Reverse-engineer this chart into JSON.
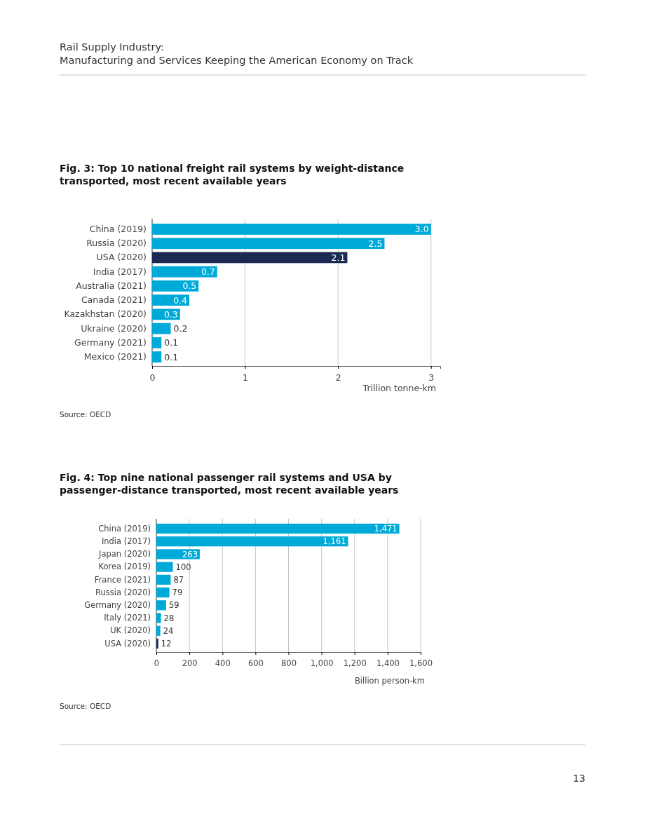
{
  "chart_data": [
    {
      "type": "bar",
      "orientation": "horizontal",
      "title": "Fig. 3: Top 10 national freight rail systems by weight-distance transported, most recent available years",
      "xlabel": "Trillion tonne-km",
      "categories": [
        "China (2019)",
        "Russia (2020)",
        "USA (2020)",
        "India (2017)",
        "Australia (2021)",
        "Canada (2021)",
        "Kazakhstan (2020)",
        "Ukraine (2020)",
        "Germany (2021)",
        "Mexico (2021)"
      ],
      "values": [
        3.0,
        2.5,
        2.1,
        0.7,
        0.5,
        0.4,
        0.3,
        0.2,
        0.1,
        0.1
      ],
      "colors": [
        "#00aad8",
        "#00aad8",
        "#1b2a52",
        "#00aad8",
        "#00aad8",
        "#00aad8",
        "#00aad8",
        "#00aad8",
        "#00aad8",
        "#00aad8"
      ],
      "xlim": [
        0,
        3.1
      ],
      "xticks": [
        0,
        1,
        2,
        3
      ],
      "grid": "x",
      "value_labels": [
        "3.0",
        "2.5",
        "2.1",
        "0.7",
        "0.5",
        "0.4",
        "0.3",
        "0.2",
        "0.1",
        "0.1"
      ],
      "annotations": [
        "Rail Supply Industry:",
        "Manufacturing and Services Keeping the American Economy on Track",
        "Source: OECD"
      ]
    },
    {
      "type": "bar",
      "orientation": "horizontal",
      "title": "Fig. 4: Top nine national passenger rail systems and USA by passenger-distance transported, most recent available years",
      "xlabel": "Billion person-km",
      "categories": [
        "China (2019)",
        "India (2017)",
        "Japan (2020)",
        "Korea (2019)",
        "France (2021)",
        "Russia (2020)",
        "Germany (2020)",
        "Italy (2021)",
        "UK (2020)",
        "USA (2020)"
      ],
      "values": [
        1471,
        1161,
        263,
        100,
        87,
        79,
        59,
        28,
        24,
        12
      ],
      "colors": [
        "#00aad8",
        "#00aad8",
        "#00aad8",
        "#00aad8",
        "#00aad8",
        "#00aad8",
        "#00aad8",
        "#00aad8",
        "#00aad8",
        "#1b2a52"
      ],
      "xlim": [
        0,
        1600
      ],
      "xticks": [
        0,
        {
          "value": 200,
          "label": "200"
        },
        {
          "value": 400,
          "label": "400"
        },
        {
          "value": 600,
          "label": "600"
        },
        {
          "value": 800,
          "label": "800"
        },
        {
          "value": 1000,
          "label": "1,000"
        },
        {
          "value": 1200,
          "label": "1,200"
        },
        {
          "value": 1400,
          "label": "1,400"
        },
        {
          "value": 1600,
          "label": "1,600"
        }
      ],
      "grid": "x",
      "value_labels": [
        "1,471",
        "1,161",
        "263",
        "100",
        "87",
        "79",
        "59",
        "28",
        "24",
        "12"
      ],
      "annotations": [
        "Source: OECD",
        "13"
      ]
    }
  ]
}
